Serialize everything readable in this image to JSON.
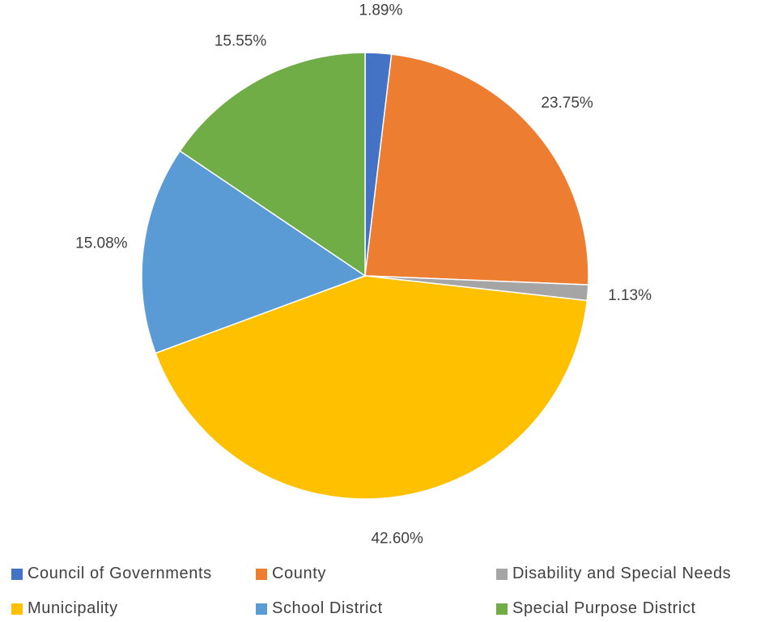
{
  "chart_data": {
    "type": "pie",
    "title": "",
    "slices": [
      {
        "name": "Council of Governments",
        "value": 1.89,
        "label": "1.89%",
        "color": "#4472C4"
      },
      {
        "name": "County",
        "value": 23.75,
        "label": "23.75%",
        "color": "#ED7D31"
      },
      {
        "name": "Disability and Special Needs",
        "value": 1.13,
        "label": "1.13%",
        "color": "#A5A5A5"
      },
      {
        "name": "Municipality",
        "value": 42.6,
        "label": "42.60%",
        "color": "#FFC000"
      },
      {
        "name": "School District",
        "value": 15.08,
        "label": "15.08%",
        "color": "#5B9BD5"
      },
      {
        "name": "Special Purpose District",
        "value": 15.55,
        "label": "15.55%",
        "color": "#70AD47"
      }
    ],
    "legend_position": "bottom"
  },
  "legend": {
    "items": [
      {
        "label": "Council of Governments"
      },
      {
        "label": "County"
      },
      {
        "label": "Disability and Special Needs"
      },
      {
        "label": "Municipality"
      },
      {
        "label": "School District"
      },
      {
        "label": "Special Purpose District"
      }
    ]
  }
}
